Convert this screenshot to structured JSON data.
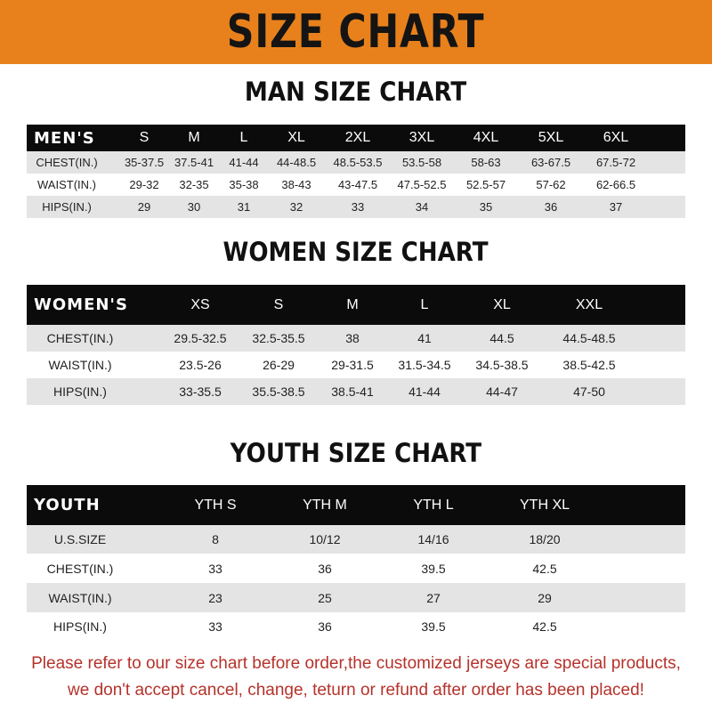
{
  "banner": {
    "title": "SIZE CHART",
    "color": "#e8811c"
  },
  "men": {
    "title": "MAN SIZE CHART",
    "header": [
      "MEN'S",
      "S",
      "M",
      "L",
      "XL",
      "2XL",
      "3XL",
      "4XL",
      "5XL",
      "6XL"
    ],
    "rows": [
      [
        "CHEST(IN.)",
        "35-37.5",
        "37.5-41",
        "41-44",
        "44-48.5",
        "48.5-53.5",
        "53.5-58",
        "58-63",
        "63-67.5",
        "67.5-72"
      ],
      [
        "WAIST(IN.)",
        "29-32",
        "32-35",
        "35-38",
        "38-43",
        "43-47.5",
        "47.5-52.5",
        "52.5-57",
        "57-62",
        "62-66.5"
      ],
      [
        "HIPS(IN.)",
        "29",
        "30",
        "31",
        "32",
        "33",
        "34",
        "35",
        "36",
        "37"
      ]
    ]
  },
  "women": {
    "title": "WOMEN SIZE CHART",
    "header": [
      "WOMEN'S",
      "XS",
      "S",
      "M",
      "L",
      "XL",
      "XXL"
    ],
    "rows": [
      [
        "CHEST(IN.)",
        "29.5-32.5",
        "32.5-35.5",
        "38",
        "41",
        "44.5",
        "44.5-48.5"
      ],
      [
        "WAIST(IN.)",
        "23.5-26",
        "26-29",
        "29-31.5",
        "31.5-34.5",
        "34.5-38.5",
        "38.5-42.5"
      ],
      [
        "HIPS(IN.)",
        "33-35.5",
        "35.5-38.5",
        "38.5-41",
        "41-44",
        "44-47",
        "47-50"
      ]
    ]
  },
  "youth": {
    "title": "YOUTH SIZE CHART",
    "header": [
      "YOUTH",
      "YTH S",
      "YTH M",
      "YTH L",
      "YTH XL"
    ],
    "rows": [
      [
        "U.S.SIZE",
        "8",
        "10/12",
        "14/16",
        "18/20"
      ],
      [
        "CHEST(IN.)",
        "33",
        "36",
        "39.5",
        "42.5"
      ],
      [
        "WAIST(IN.)",
        "23",
        "25",
        "27",
        "29"
      ],
      [
        "HIPS(IN.)",
        "33",
        "36",
        "39.5",
        "42.5"
      ]
    ]
  },
  "note": {
    "line1": "Please refer to our size chart before order,the customized jerseys are special products,",
    "line2": "we don't accept cancel, change, teturn or refund after order has been placed!",
    "color": "#b5322b"
  }
}
